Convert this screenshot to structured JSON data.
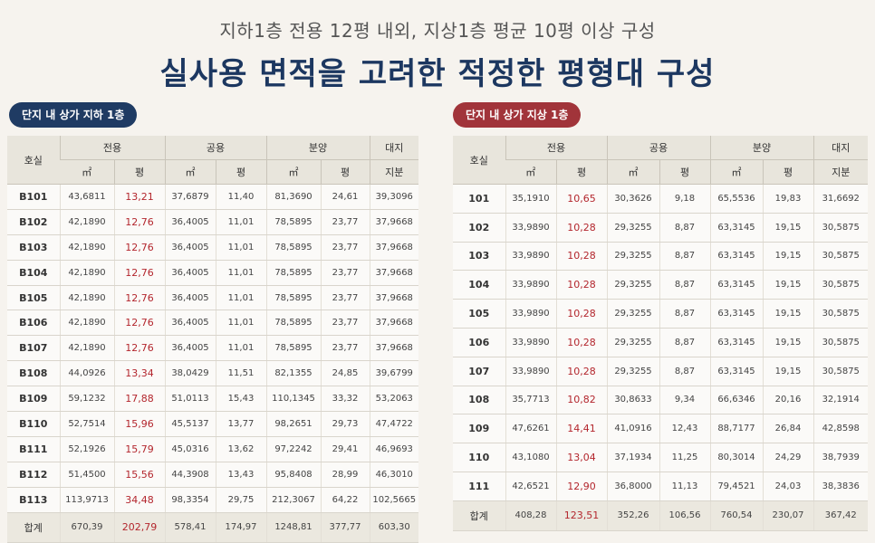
{
  "header": {
    "subtitle": "지하1층 전용 12평 내외, 지상1층 평균 10평 이상 구성",
    "title": "실사용 면적을 고려한 적정한 평형대 구성"
  },
  "headers": {
    "unit": "호실",
    "exclusive": "전용",
    "common": "공용",
    "sale": "분양",
    "land_top": "대지",
    "land_bottom": "지분",
    "sqm": "㎡",
    "pyeong": "평"
  },
  "basement": {
    "label": "단지 내 상가 지하 1층",
    "rows": [
      [
        "B101",
        "43,6811",
        "13,21",
        "37,6879",
        "11,40",
        "81,3690",
        "24,61",
        "39,3096"
      ],
      [
        "B102",
        "42,1890",
        "12,76",
        "36,4005",
        "11,01",
        "78,5895",
        "23,77",
        "37,9668"
      ],
      [
        "B103",
        "42,1890",
        "12,76",
        "36,4005",
        "11,01",
        "78,5895",
        "23,77",
        "37,9668"
      ],
      [
        "B104",
        "42,1890",
        "12,76",
        "36,4005",
        "11,01",
        "78,5895",
        "23,77",
        "37,9668"
      ],
      [
        "B105",
        "42,1890",
        "12,76",
        "36,4005",
        "11,01",
        "78,5895",
        "23,77",
        "37,9668"
      ],
      [
        "B106",
        "42,1890",
        "12,76",
        "36,4005",
        "11,01",
        "78,5895",
        "23,77",
        "37,9668"
      ],
      [
        "B107",
        "42,1890",
        "12,76",
        "36,4005",
        "11,01",
        "78,5895",
        "23,77",
        "37,9668"
      ],
      [
        "B108",
        "44,0926",
        "13,34",
        "38,0429",
        "11,51",
        "82,1355",
        "24,85",
        "39,6799"
      ],
      [
        "B109",
        "59,1232",
        "17,88",
        "51,0113",
        "15,43",
        "110,1345",
        "33,32",
        "53,2063"
      ],
      [
        "B110",
        "52,7514",
        "15,96",
        "45,5137",
        "13,77",
        "98,2651",
        "29,73",
        "47,4722"
      ],
      [
        "B111",
        "52,1926",
        "15,79",
        "45,0316",
        "13,62",
        "97,2242",
        "29,41",
        "46,9693"
      ],
      [
        "B112",
        "51,4500",
        "15,56",
        "44,3908",
        "13,43",
        "95,8408",
        "28,99",
        "46,3010"
      ],
      [
        "B113",
        "113,9713",
        "34,48",
        "98,3354",
        "29,75",
        "212,3067",
        "64,22",
        "102,5665"
      ]
    ],
    "total": [
      "합계",
      "670,39",
      "202,79",
      "578,41",
      "174,97",
      "1248,81",
      "377,77",
      "603,30"
    ]
  },
  "ground": {
    "label": "단지 내 상가 지상 1층",
    "rows": [
      [
        "101",
        "35,1910",
        "10,65",
        "30,3626",
        "9,18",
        "65,5536",
        "19,83",
        "31,6692"
      ],
      [
        "102",
        "33,9890",
        "10,28",
        "29,3255",
        "8,87",
        "63,3145",
        "19,15",
        "30,5875"
      ],
      [
        "103",
        "33,9890",
        "10,28",
        "29,3255",
        "8,87",
        "63,3145",
        "19,15",
        "30,5875"
      ],
      [
        "104",
        "33,9890",
        "10,28",
        "29,3255",
        "8,87",
        "63,3145",
        "19,15",
        "30,5875"
      ],
      [
        "105",
        "33,9890",
        "10,28",
        "29,3255",
        "8,87",
        "63,3145",
        "19,15",
        "30,5875"
      ],
      [
        "106",
        "33,9890",
        "10,28",
        "29,3255",
        "8,87",
        "63,3145",
        "19,15",
        "30,5875"
      ],
      [
        "107",
        "33,9890",
        "10,28",
        "29,3255",
        "8,87",
        "63,3145",
        "19,15",
        "30,5875"
      ],
      [
        "108",
        "35,7713",
        "10,82",
        "30,8633",
        "9,34",
        "66,6346",
        "20,16",
        "32,1914"
      ],
      [
        "109",
        "47,6261",
        "14,41",
        "41,0916",
        "12,43",
        "88,7177",
        "26,84",
        "42,8598"
      ],
      [
        "110",
        "43,1080",
        "13,04",
        "37,1934",
        "11,25",
        "80,3014",
        "24,29",
        "38,7939"
      ],
      [
        "111",
        "42,6521",
        "12,90",
        "36,8000",
        "11,13",
        "79,4521",
        "24,03",
        "38,3836"
      ]
    ],
    "total": [
      "합계",
      "408,28",
      "123,51",
      "352,26",
      "106,56",
      "760,54",
      "230,07",
      "367,42"
    ]
  }
}
